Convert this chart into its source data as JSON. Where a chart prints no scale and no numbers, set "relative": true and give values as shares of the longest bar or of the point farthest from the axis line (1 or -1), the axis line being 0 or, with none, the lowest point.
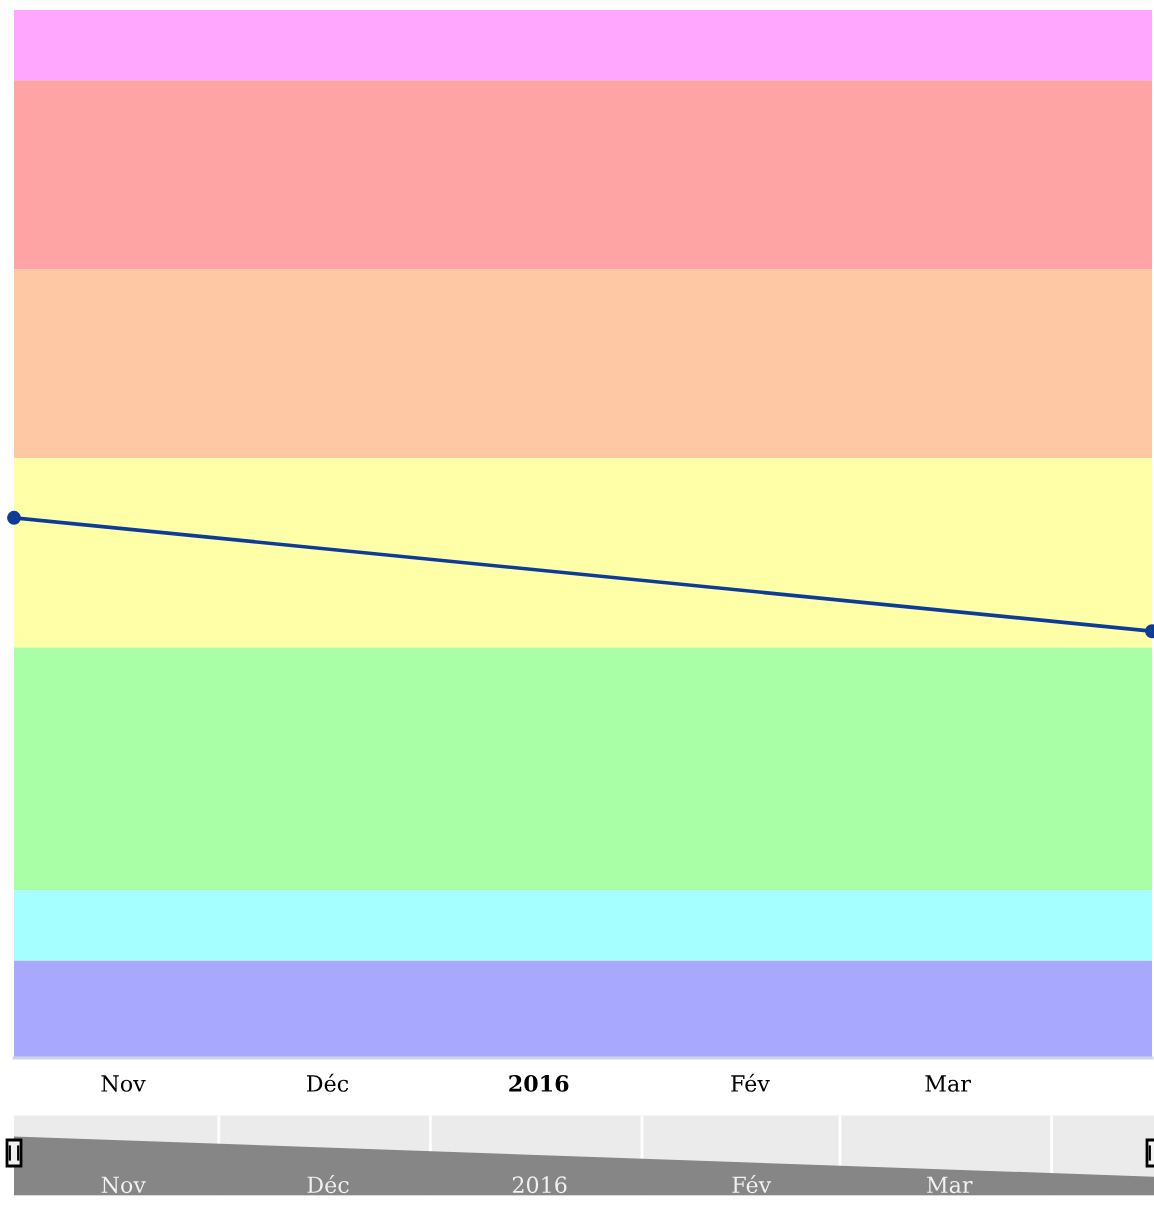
{
  "chart_data": [
    {
      "type": "line",
      "relative": true,
      "tick_labels": "x",
      "marker": "circle",
      "x": [
        "2015-11-01",
        "2016-04-16"
      ],
      "xlim": [
        "2015-11-01",
        "2016-04-16"
      ],
      "xticks": [
        {
          "value": "2015-11-17",
          "label": "Nov"
        },
        {
          "value": "2015-12-17",
          "label": "Déc"
        },
        {
          "value": "2016-01-17",
          "label": "2016"
        },
        {
          "value": "2016-02-17",
          "label": "Fév"
        },
        {
          "value": "2016-03-17",
          "label": "Mar"
        }
      ],
      "series": [
        {
          "color": "#0d3c96",
          "values": [
            1,
            0.79
          ]
        }
      ],
      "bands": [
        {
          "axis": "y",
          "from": 1.81,
          "to": 1.94,
          "color": "#ffa6ff"
        },
        {
          "axis": "y",
          "from": 1.46,
          "to": 1.81,
          "color": "#ffa4a4"
        },
        {
          "axis": "y",
          "from": 1.11,
          "to": 1.46,
          "color": "#ffc8a4"
        },
        {
          "axis": "y",
          "from": 0.76,
          "to": 1.11,
          "color": "#ffffa8"
        },
        {
          "axis": "y",
          "from": 0.31,
          "to": 0.76,
          "color": "#a8ffa6"
        },
        {
          "axis": "y",
          "from": 0.18,
          "to": 0.31,
          "color": "#a6ffff"
        },
        {
          "axis": "y",
          "from": 0,
          "to": 0.18,
          "color": "#a8a8ff"
        }
      ]
    },
    {
      "type": "area",
      "relative": true,
      "tick_labels": "x",
      "grid": "x",
      "x": [
        "2015-11-01",
        "2016-04-16"
      ],
      "xlim": [
        "2015-11-01",
        "2016-04-16"
      ],
      "xticks": [
        {
          "value": "2015-11-17",
          "label": "Nov"
        },
        {
          "value": "2015-12-01",
          "label": null
        },
        {
          "value": "2015-12-17",
          "label": "Déc"
        },
        {
          "value": "2016-01-01",
          "label": null
        },
        {
          "value": "2016-01-17",
          "label": "2016"
        },
        {
          "value": "2016-02-01",
          "label": null
        },
        {
          "value": "2016-02-17",
          "label": "Fév"
        },
        {
          "value": "2016-03-01",
          "label": null
        },
        {
          "value": "2016-03-17",
          "label": "Mar"
        },
        {
          "value": "2016-04-01",
          "label": null
        }
      ],
      "series": [
        {
          "color": "#868686",
          "values": [
            1,
            0.3
          ]
        }
      ]
    }
  ]
}
